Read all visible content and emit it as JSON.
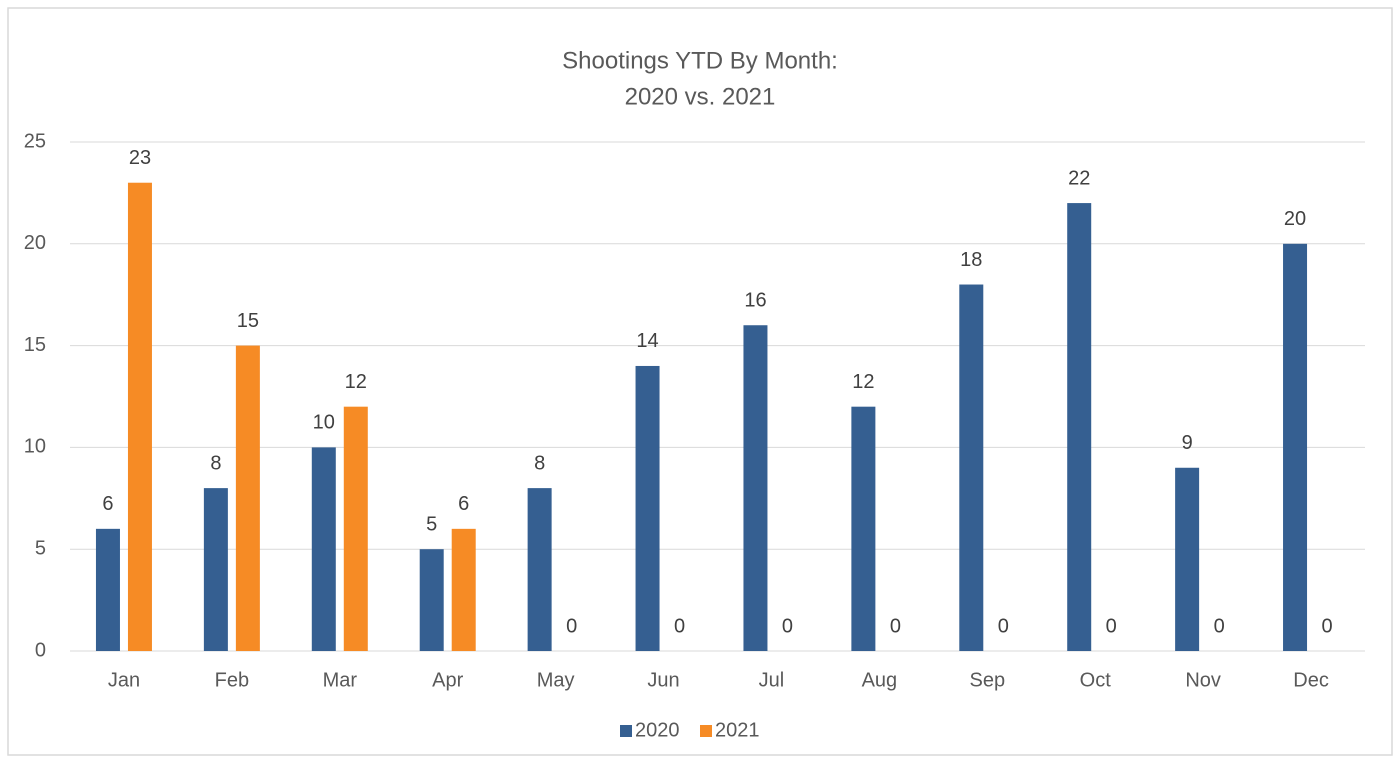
{
  "chart_data": {
    "type": "bar",
    "title": [
      "Shootings YTD By Month:",
      "2020 vs. 2021"
    ],
    "categories": [
      "Jan",
      "Feb",
      "Mar",
      "Apr",
      "May",
      "Jun",
      "Jul",
      "Aug",
      "Sep",
      "Oct",
      "Nov",
      "Dec"
    ],
    "series": [
      {
        "name": "2020",
        "color": "#355f91",
        "values": [
          6,
          8,
          10,
          5,
          8,
          14,
          16,
          12,
          18,
          22,
          9,
          20
        ]
      },
      {
        "name": "2021",
        "color": "#f68b25",
        "values": [
          23,
          15,
          12,
          6,
          0,
          0,
          0,
          0,
          0,
          0,
          0,
          0
        ]
      }
    ],
    "ylim": [
      0,
      25
    ],
    "yticks": [
      0,
      5,
      10,
      15,
      20,
      25
    ],
    "grid": true,
    "legend": "bottom"
  }
}
